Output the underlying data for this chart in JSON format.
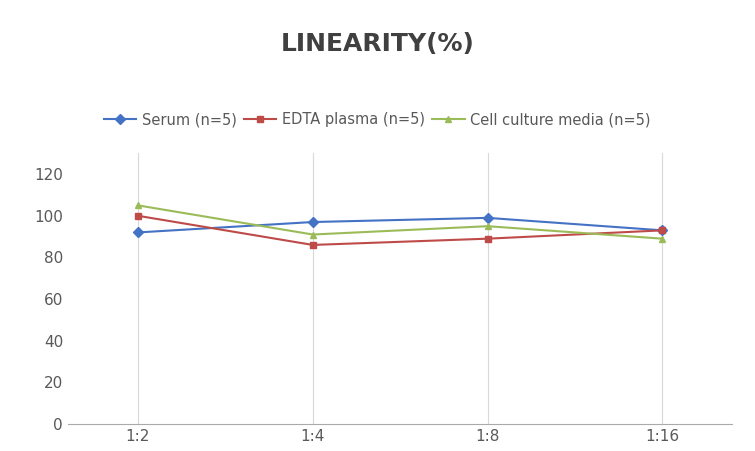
{
  "title": "LINEARITY(%)",
  "x_labels": [
    "1:2",
    "1:4",
    "1:8",
    "1:16"
  ],
  "x_positions": [
    0,
    1,
    2,
    3
  ],
  "series": [
    {
      "label": "Serum (n=5)",
      "values": [
        92,
        97,
        99,
        93
      ],
      "color": "#4472C4",
      "marker": "D",
      "markersize": 5
    },
    {
      "label": "EDTA plasma (n=5)",
      "values": [
        100,
        86,
        89,
        93
      ],
      "color": "#BE4B48",
      "marker": "s",
      "markersize": 5
    },
    {
      "label": "Cell culture media (n=5)",
      "values": [
        105,
        91,
        95,
        89
      ],
      "color": "#9BBB59",
      "marker": "^",
      "markersize": 5
    }
  ],
  "ylim": [
    0,
    130
  ],
  "yticks": [
    0,
    20,
    40,
    60,
    80,
    100,
    120
  ],
  "grid_color": "#D9D9D9",
  "background_color": "#FFFFFF",
  "title_fontsize": 18,
  "title_fontweight": "bold",
  "title_color": "#404040",
  "legend_fontsize": 10.5,
  "tick_fontsize": 11,
  "tick_color": "#595959"
}
